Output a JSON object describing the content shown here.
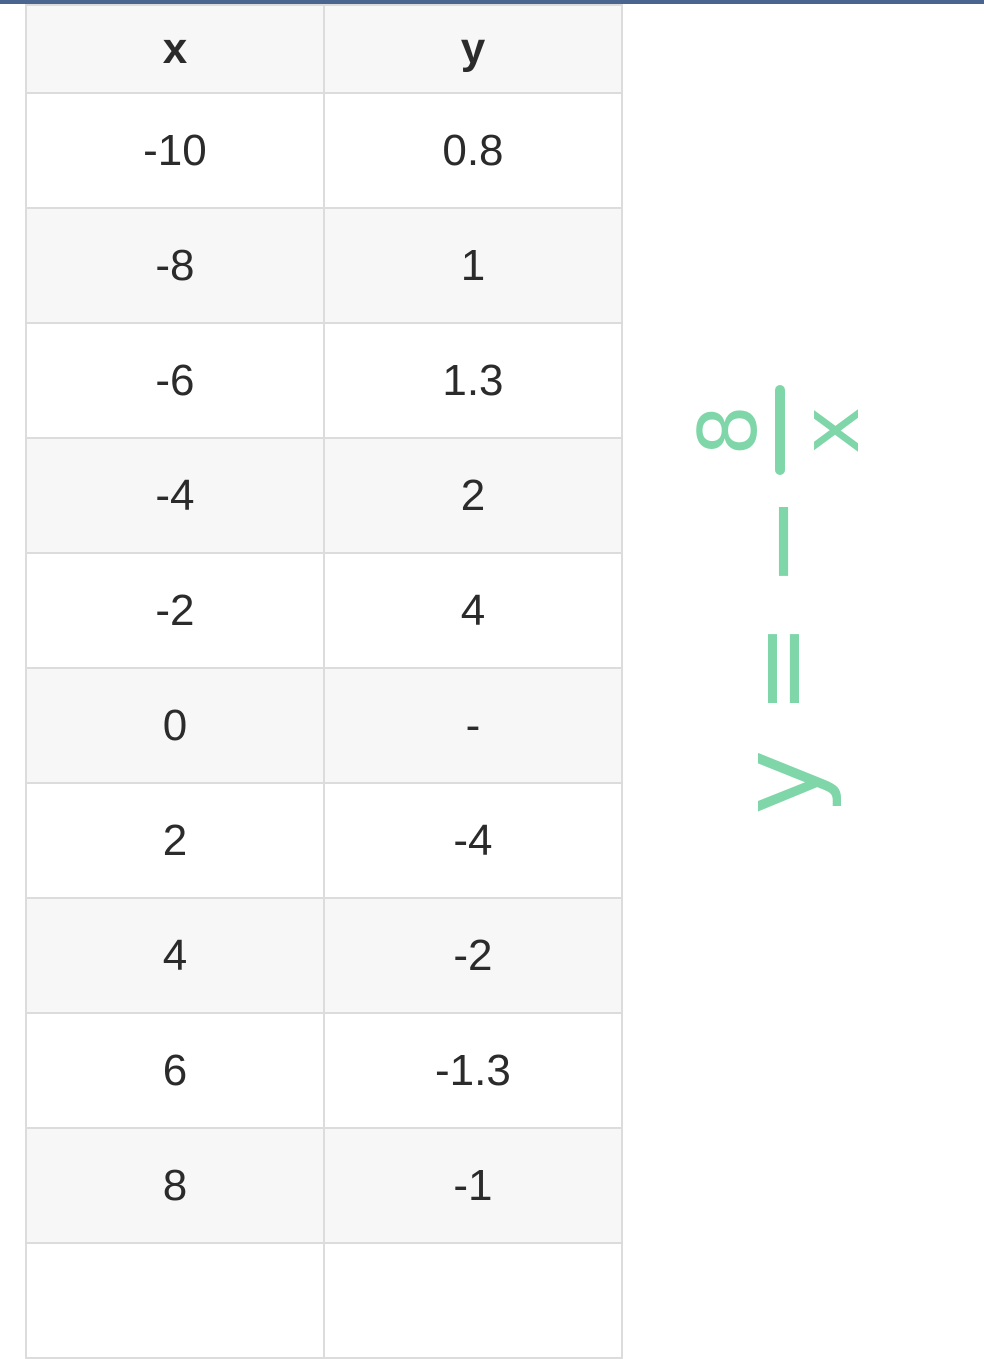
{
  "table": {
    "headers": [
      "x",
      "y"
    ],
    "rows": [
      [
        "-10",
        "0.8"
      ],
      [
        "-8",
        "1"
      ],
      [
        "-6",
        "1.3"
      ],
      [
        "-4",
        "2"
      ],
      [
        "-2",
        "4"
      ],
      [
        "0",
        "-"
      ],
      [
        "2",
        "-4"
      ],
      [
        "4",
        "-2"
      ],
      [
        "6",
        "-1.3"
      ],
      [
        "8",
        "-1"
      ],
      [
        "",
        ""
      ]
    ]
  },
  "annotation": {
    "lhs": "y = −",
    "numerator": "8",
    "denominator": "x",
    "color": "#7fd6a8"
  },
  "colors": {
    "topbar": "#4a6690",
    "border": "#dcdcdc",
    "stripe": "#f7f7f7"
  }
}
